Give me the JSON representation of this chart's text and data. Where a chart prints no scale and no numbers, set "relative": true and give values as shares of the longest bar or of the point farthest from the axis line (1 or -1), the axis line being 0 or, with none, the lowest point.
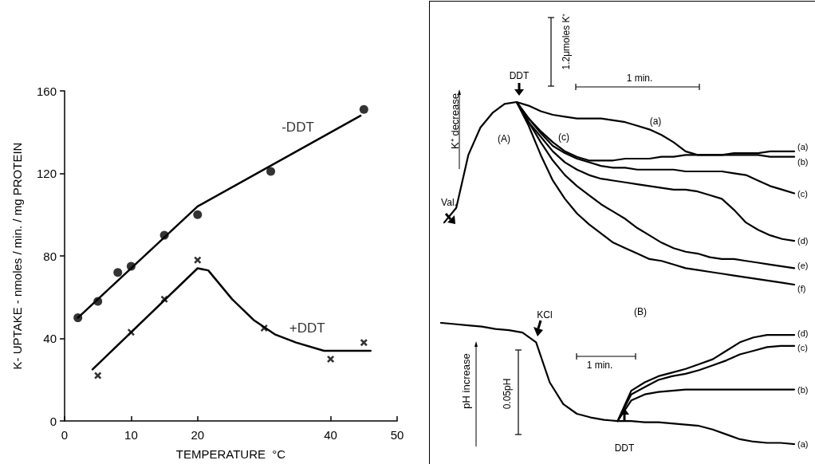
{
  "chart_data": [
    {
      "type": "scatter",
      "xlabel": "TEMPERATURE  °C",
      "ylabel": "K- UPTAKE - nmoles / min. / mg PROTEIN",
      "xlim": [
        0,
        50
      ],
      "xticks": [
        0,
        10,
        20,
        40,
        50
      ],
      "ylim": [
        0,
        160
      ],
      "yticks": [
        0,
        40,
        80,
        120,
        160
      ],
      "grid": false,
      "legend": false,
      "series": [
        {
          "name": "-DDT",
          "color": "#000000",
          "marker": "circle",
          "x": [
            2,
            5,
            8,
            10,
            15,
            20,
            31,
            45
          ],
          "values": [
            50,
            58,
            72,
            75,
            90,
            100,
            121,
            151
          ]
        },
        {
          "name": "+DDT",
          "color": "#000000",
          "marker": "cross",
          "x": [
            5,
            10,
            15,
            20,
            30,
            40,
            45
          ],
          "values": [
            22,
            43,
            59,
            78,
            45,
            30,
            38
          ]
        },
        {
          "type": "line",
          "color": "#000000",
          "marker": "none",
          "x": [
            2,
            20,
            44.5
          ],
          "values": [
            50,
            104,
            148
          ]
        },
        {
          "type": "line",
          "color": "#000000",
          "marker": "none",
          "x": [
            4.2,
            20,
            21.6,
            25.2,
            28.4,
            31.6,
            34.8,
            39,
            46
          ],
          "values": [
            25,
            74,
            73,
            59,
            49,
            42,
            38,
            34,
            34
          ]
        }
      ]
    },
    {
      "type": "line",
      "relative": true,
      "marker": "none",
      "ylabel": "K⁺ decrease",
      "annotations": [
        "DDT",
        "(A)",
        "(c)",
        "(a)",
        "Val.",
        "1 min.",
        "1.2μmoles K⁺"
      ],
      "categories": [
        null,
        null,
        null,
        null,
        null,
        null,
        null,
        null,
        null,
        null,
        null,
        null,
        null,
        null,
        null,
        null,
        null,
        null,
        null,
        null,
        null,
        null,
        null,
        null,
        null,
        null,
        null,
        null,
        null,
        null
      ],
      "series": [
        {
          "name": "(a)",
          "color": "#000000",
          "values": [
            0.34,
            0.42,
            0.71,
            0.86,
            0.94,
            0.99,
            1.0,
            0.98,
            0.95,
            0.93,
            0.92,
            0.91,
            0.91,
            0.91,
            0.9,
            0.89,
            0.87,
            0.85,
            0.82,
            0.78,
            0.73,
            0.71,
            0.71,
            0.71,
            0.72,
            0.72,
            0.72,
            0.73,
            0.73,
            0.73
          ]
        },
        {
          "name": "(b)",
          "color": "#000000",
          "values": [
            null,
            null,
            null,
            null,
            null,
            null,
            1.0,
            0.91,
            0.84,
            0.78,
            0.73,
            0.7,
            0.68,
            0.68,
            0.68,
            0.69,
            0.69,
            0.69,
            0.7,
            0.7,
            0.71,
            0.71,
            0.71,
            0.71,
            0.71,
            0.71,
            0.71,
            0.7,
            0.7,
            0.7
          ]
        },
        {
          "name": "(c)",
          "color": "#000000",
          "values": [
            null,
            null,
            null,
            null,
            null,
            null,
            1.0,
            0.91,
            0.83,
            0.76,
            0.72,
            0.69,
            0.67,
            0.65,
            0.64,
            0.64,
            0.63,
            0.63,
            0.63,
            0.63,
            0.62,
            0.62,
            0.62,
            0.62,
            0.61,
            0.6,
            0.57,
            0.54,
            0.52,
            0.5
          ]
        },
        {
          "name": "(d)",
          "color": "#000000",
          "values": [
            null,
            null,
            null,
            null,
            null,
            null,
            1.0,
            0.89,
            0.81,
            0.73,
            0.67,
            0.63,
            0.6,
            0.58,
            0.57,
            0.56,
            0.55,
            0.54,
            0.53,
            0.52,
            0.52,
            0.51,
            0.49,
            0.47,
            0.41,
            0.34,
            0.3,
            0.27,
            0.25,
            0.24
          ]
        },
        {
          "name": "(e)",
          "color": "#000000",
          "values": [
            null,
            null,
            null,
            null,
            null,
            null,
            1.0,
            0.89,
            0.78,
            0.68,
            0.6,
            0.54,
            0.49,
            0.44,
            0.4,
            0.36,
            0.31,
            0.27,
            0.23,
            0.2,
            0.18,
            0.17,
            0.15,
            0.14,
            0.14,
            0.13,
            0.12,
            0.11,
            0.1,
            0.09
          ]
        },
        {
          "name": "(f)",
          "color": "#000000",
          "values": [
            null,
            null,
            null,
            null,
            null,
            null,
            1.0,
            0.87,
            0.71,
            0.57,
            0.47,
            0.39,
            0.33,
            0.28,
            0.23,
            0.2,
            0.17,
            0.14,
            0.13,
            0.11,
            0.09,
            0.08,
            0.07,
            0.06,
            0.05,
            0.04,
            0.03,
            0.02,
            0.01,
            0
          ]
        }
      ]
    },
    {
      "type": "line",
      "relative": true,
      "marker": "none",
      "ylabel": "pH increase",
      "annotations": [
        "(B)",
        "KCl",
        "DDT",
        "1 min.",
        "0.05pH"
      ],
      "categories": [
        null,
        null,
        null,
        null,
        null,
        null,
        null,
        null,
        null,
        null,
        null,
        null,
        null,
        null,
        null,
        null,
        null,
        null,
        null,
        null,
        null,
        null,
        null,
        null,
        null,
        null,
        null
      ],
      "series": [
        {
          "name": "(a)",
          "color": "#000000",
          "values": [
            1.0,
            0.99,
            0.98,
            0.97,
            0.95,
            0.94,
            0.92,
            0.84,
            0.51,
            0.33,
            0.25,
            0.22,
            0.2,
            0.19,
            0.19,
            0.18,
            0.18,
            0.17,
            0.16,
            0.15,
            0.12,
            0.08,
            0.04,
            0.02,
            0.01,
            0.01,
            0
          ]
        },
        {
          "name": "(b)",
          "color": "#000000",
          "values": [
            null,
            null,
            null,
            null,
            null,
            null,
            null,
            null,
            null,
            null,
            null,
            null,
            null,
            0.19,
            0.36,
            0.41,
            0.43,
            0.44,
            0.45,
            0.45,
            0.45,
            0.45,
            0.45,
            0.45,
            0.45,
            0.45,
            0.45
          ]
        },
        {
          "name": "(c)",
          "color": "#000000",
          "values": [
            null,
            null,
            null,
            null,
            null,
            null,
            null,
            null,
            null,
            null,
            null,
            null,
            null,
            0.19,
            0.41,
            0.47,
            0.53,
            0.56,
            0.58,
            0.61,
            0.65,
            0.69,
            0.74,
            0.77,
            0.8,
            0.81,
            0.81
          ]
        },
        {
          "name": "(d)",
          "color": "#000000",
          "values": [
            null,
            null,
            null,
            null,
            null,
            null,
            null,
            null,
            null,
            null,
            null,
            null,
            null,
            0.19,
            0.44,
            0.51,
            0.56,
            0.59,
            0.62,
            0.66,
            0.7,
            0.77,
            0.84,
            0.88,
            0.9,
            0.9,
            0.9
          ]
        }
      ]
    }
  ]
}
